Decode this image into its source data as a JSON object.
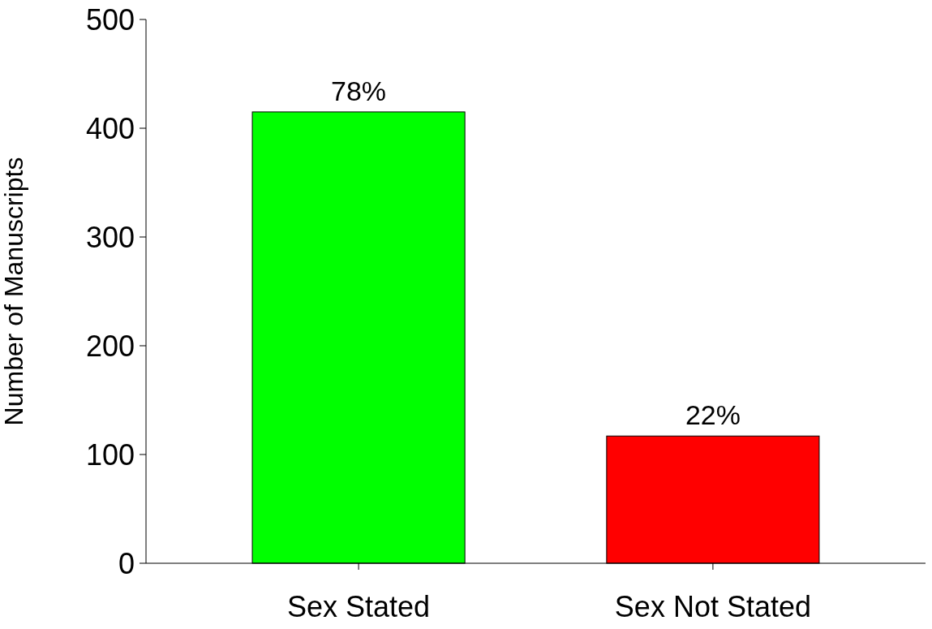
{
  "chart_data": {
    "type": "bar",
    "ylabel": "Number of Manuscripts",
    "categories": [
      "Sex Stated",
      "Sex Not Stated"
    ],
    "values": [
      415,
      117
    ],
    "colors": [
      "#00ff00",
      "#ff0000"
    ],
    "annotations": [
      {
        "text": "78%",
        "x": "Sex Stated",
        "y": 415
      },
      {
        "text": "22%",
        "x": "Sex Not Stated",
        "y": 117
      }
    ],
    "ylim": [
      0,
      500
    ],
    "yticks": [
      0,
      100,
      200,
      300,
      400,
      500
    ],
    "grid": false
  }
}
